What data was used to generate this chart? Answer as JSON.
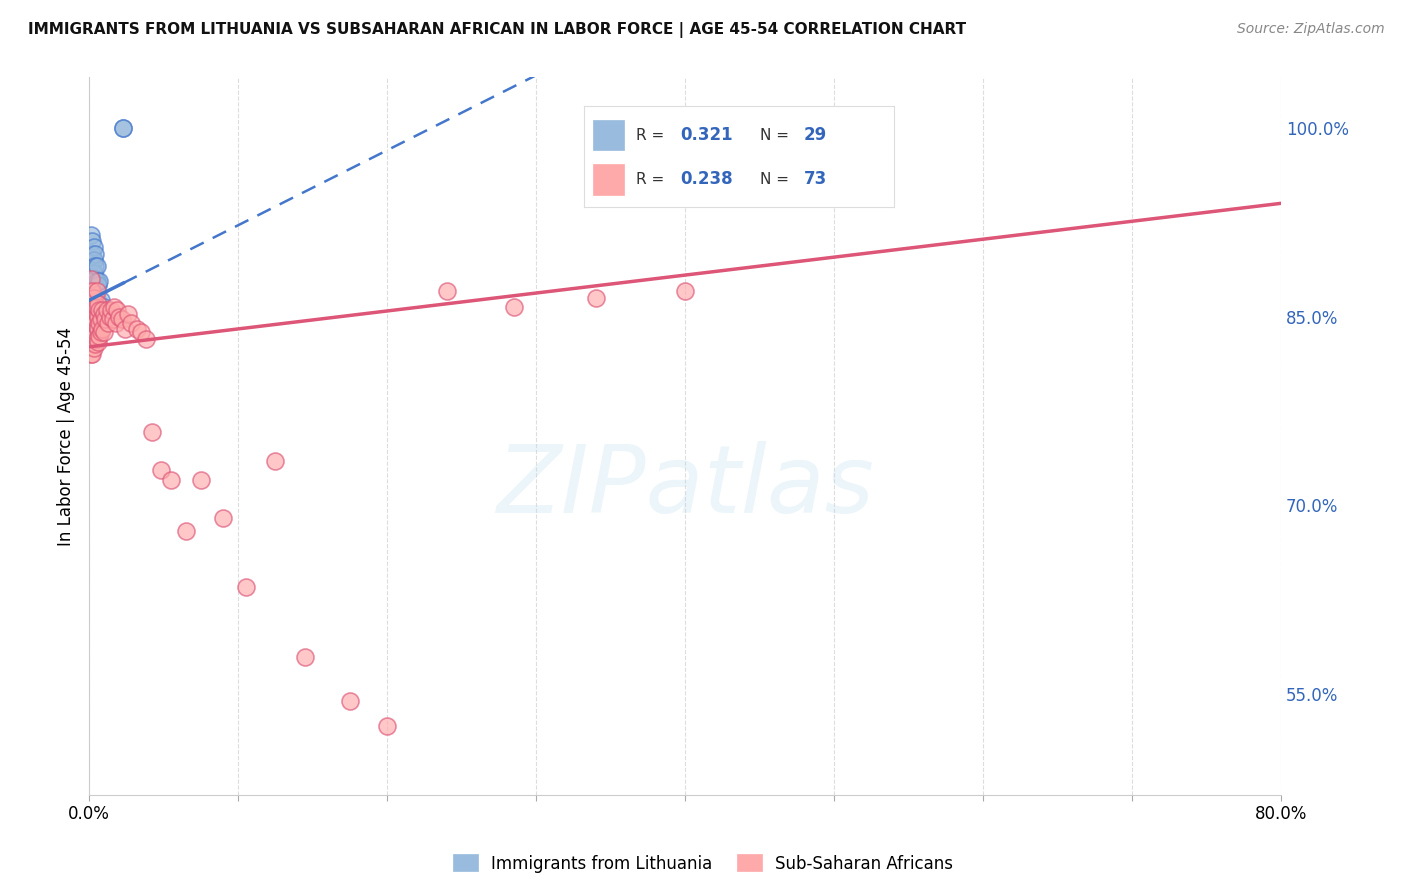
{
  "title": "IMMIGRANTS FROM LITHUANIA VS SUBSAHARAN AFRICAN IN LABOR FORCE | AGE 45-54 CORRELATION CHART",
  "source": "Source: ZipAtlas.com",
  "ylabel": "In Labor Force | Age 45-54",
  "x_min": 0.0,
  "x_max": 0.8,
  "y_min": 0.47,
  "y_max": 1.04,
  "blue_color": "#99BBDD",
  "pink_color": "#FFAAAA",
  "blue_line_color": "#4477CC",
  "pink_line_color": "#DD5577",
  "label_color": "#3366BB",
  "watermark_text": "ZIPatlas",
  "legend_labels": [
    "Immigrants from Lithuania",
    "Sub-Saharan Africans"
  ],
  "legend_R": [
    0.321,
    0.238
  ],
  "legend_N": [
    29,
    73
  ],
  "lithuania_x": [
    0.001,
    0.001,
    0.001,
    0.002,
    0.002,
    0.002,
    0.002,
    0.002,
    0.003,
    0.003,
    0.003,
    0.003,
    0.003,
    0.004,
    0.004,
    0.004,
    0.004,
    0.005,
    0.005,
    0.005,
    0.006,
    0.006,
    0.007,
    0.008,
    0.008,
    0.01,
    0.012,
    0.023,
    0.023
  ],
  "lithuania_y": [
    0.895,
    0.915,
    0.875,
    0.91,
    0.9,
    0.89,
    0.88,
    0.865,
    0.905,
    0.895,
    0.885,
    0.875,
    0.86,
    0.9,
    0.89,
    0.88,
    0.87,
    0.89,
    0.878,
    0.863,
    0.875,
    0.86,
    0.878,
    0.863,
    0.845,
    0.858,
    0.85,
    1.0,
    1.0
  ],
  "subsaharan_x": [
    0.001,
    0.001,
    0.001,
    0.001,
    0.001,
    0.001,
    0.001,
    0.001,
    0.002,
    0.002,
    0.002,
    0.002,
    0.002,
    0.002,
    0.003,
    0.003,
    0.003,
    0.003,
    0.003,
    0.004,
    0.004,
    0.004,
    0.004,
    0.005,
    0.005,
    0.005,
    0.005,
    0.005,
    0.006,
    0.006,
    0.006,
    0.006,
    0.007,
    0.007,
    0.007,
    0.008,
    0.008,
    0.009,
    0.009,
    0.01,
    0.01,
    0.011,
    0.012,
    0.013,
    0.014,
    0.015,
    0.016,
    0.017,
    0.018,
    0.019,
    0.02,
    0.022,
    0.024,
    0.026,
    0.028,
    0.032,
    0.035,
    0.038,
    0.042,
    0.048,
    0.055,
    0.065,
    0.075,
    0.09,
    0.105,
    0.125,
    0.145,
    0.175,
    0.2,
    0.24,
    0.285,
    0.34,
    0.4
  ],
  "subsaharan_y": [
    0.855,
    0.87,
    0.88,
    0.865,
    0.85,
    0.84,
    0.83,
    0.82,
    0.87,
    0.86,
    0.85,
    0.84,
    0.83,
    0.82,
    0.865,
    0.855,
    0.845,
    0.835,
    0.825,
    0.858,
    0.848,
    0.838,
    0.828,
    0.852,
    0.842,
    0.832,
    0.858,
    0.87,
    0.85,
    0.84,
    0.86,
    0.83,
    0.845,
    0.855,
    0.835,
    0.848,
    0.838,
    0.855,
    0.84,
    0.852,
    0.838,
    0.848,
    0.855,
    0.845,
    0.85,
    0.855,
    0.848,
    0.858,
    0.845,
    0.855,
    0.85,
    0.848,
    0.84,
    0.852,
    0.845,
    0.84,
    0.838,
    0.832,
    0.758,
    0.728,
    0.72,
    0.68,
    0.72,
    0.69,
    0.635,
    0.735,
    0.58,
    0.545,
    0.525,
    0.87,
    0.858,
    0.865,
    0.87
  ],
  "blue_trend_x0": 0.0,
  "blue_trend_y0": 0.863,
  "blue_trend_x1": 0.23,
  "blue_trend_y1": 1.0,
  "pink_trend_x0": 0.0,
  "pink_trend_y0": 0.826,
  "pink_trend_x1": 0.8,
  "pink_trend_y1": 0.94
}
